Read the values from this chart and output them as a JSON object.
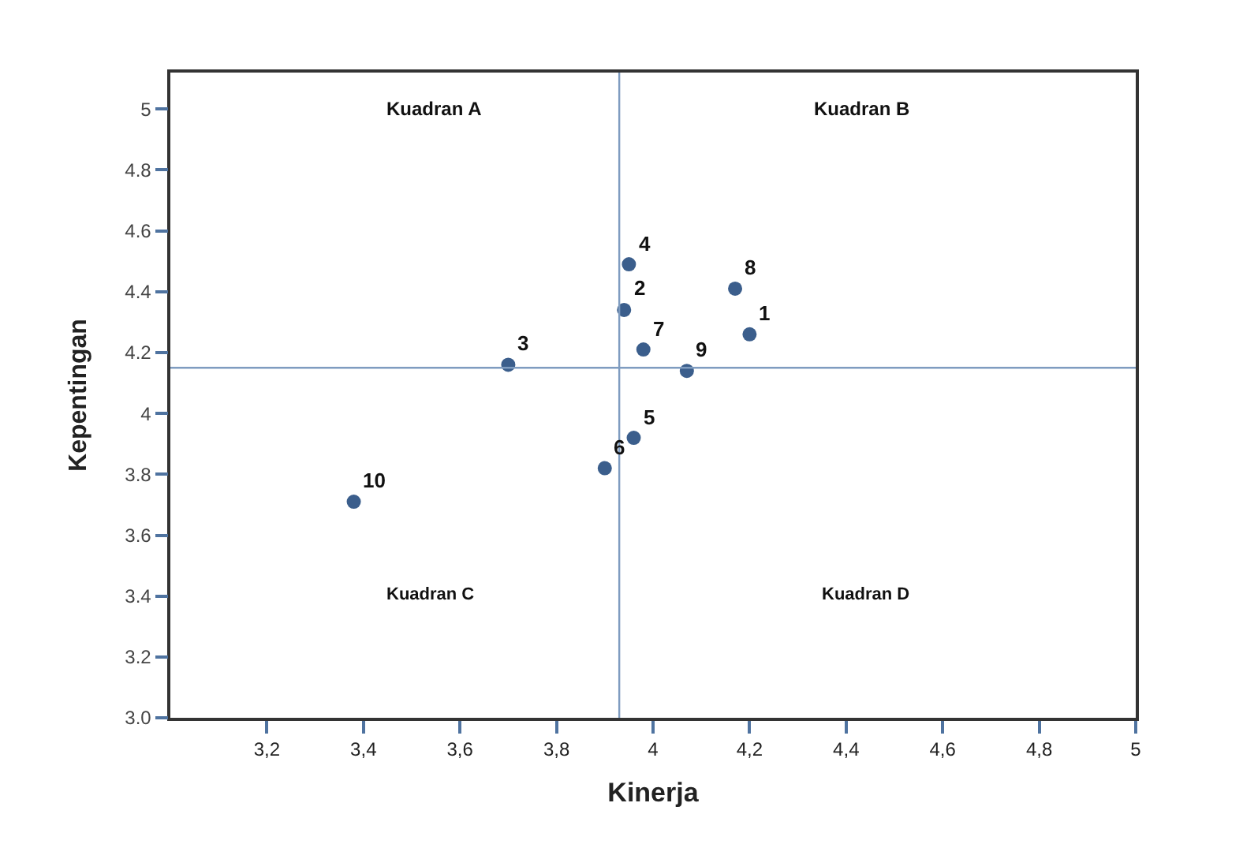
{
  "chart_data": {
    "type": "scatter",
    "xlabel": "Kinerja",
    "ylabel": "Kepentingan",
    "x": [
      4.2,
      3.94,
      3.7,
      3.95,
      3.96,
      3.9,
      3.98,
      4.17,
      4.07,
      3.38
    ],
    "values": [
      4.26,
      4.34,
      4.16,
      4.49,
      3.92,
      3.82,
      4.21,
      4.41,
      4.14,
      3.71
    ],
    "color": "#3b5e8c",
    "marker": "circle",
    "xlim": [
      3.0,
      5
    ],
    "ylim": [
      3.0,
      5.12
    ],
    "xticks": [
      {
        "value": 3.2,
        "label": "3,2"
      },
      {
        "value": 3.4,
        "label": "3,4"
      },
      {
        "value": 3.6,
        "label": "3,6"
      },
      {
        "value": 3.8,
        "label": "3,8"
      },
      4,
      {
        "value": 4.2,
        "label": "4,2"
      },
      {
        "value": 4.4,
        "label": "4,4"
      },
      {
        "value": 4.6,
        "label": "4,6"
      },
      {
        "value": 4.8,
        "label": "4,8"
      },
      5
    ],
    "yticks": [
      {
        "value": 3.0,
        "label": "3.0"
      },
      3.2,
      3.4,
      3.6,
      3.8,
      4,
      4.2,
      4.4,
      4.6,
      4.8,
      5
    ],
    "ref_lines": [
      {
        "axis": "x",
        "value": 3.93,
        "color": "#7f9cc0"
      },
      {
        "axis": "y",
        "value": 4.15,
        "color": "#7f9cc0"
      }
    ],
    "annotations": [
      {
        "text": "1",
        "x": 4.2,
        "y": 4.26
      },
      {
        "text": "2",
        "x": 3.94,
        "y": 4.34
      },
      {
        "text": "3",
        "x": 3.7,
        "y": 4.16
      },
      {
        "text": "4",
        "x": 3.95,
        "y": 4.49
      },
      {
        "text": "5",
        "x": 3.96,
        "y": 3.92
      },
      {
        "text": "6",
        "x": 3.9,
        "y": 3.82
      },
      {
        "text": "7",
        "x": 3.98,
        "y": 4.21
      },
      {
        "text": "8",
        "x": 4.17,
        "y": 4.41
      },
      {
        "text": "9",
        "x": 4.07,
        "y": 4.14
      },
      {
        "text": "10",
        "x": 3.38,
        "y": 3.71
      },
      "Kuadran A",
      "Kuadran B",
      "Kuadran C",
      "Kuadran D"
    ]
  }
}
